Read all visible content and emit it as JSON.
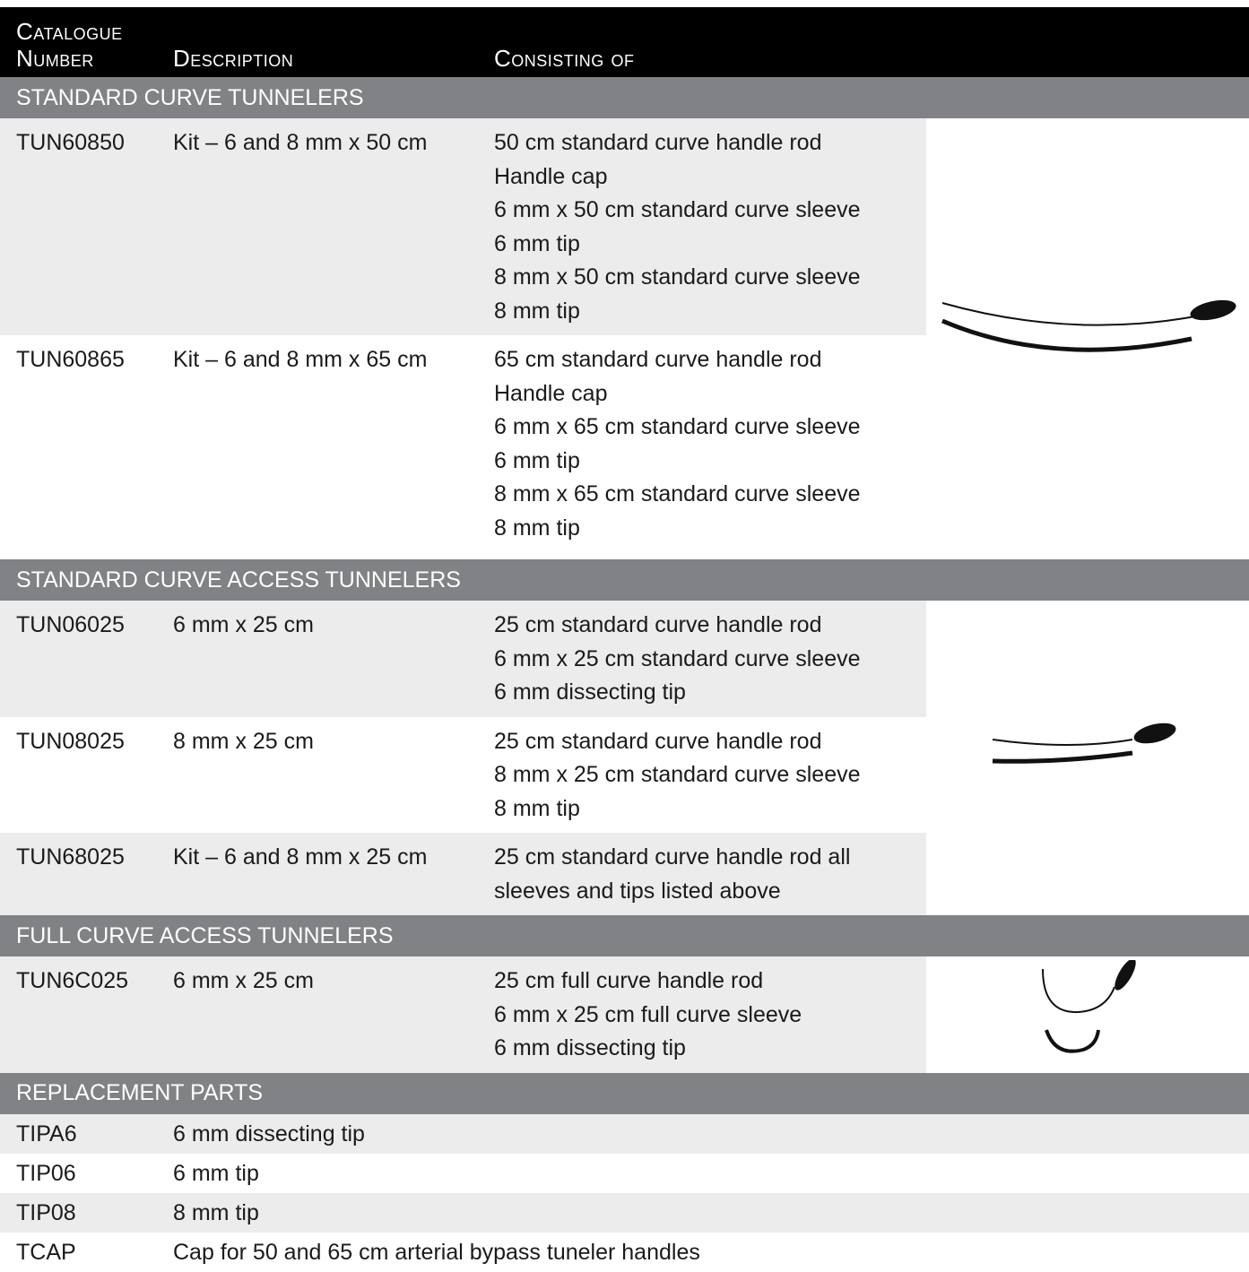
{
  "header": {
    "columns": [
      "Catalogue Number",
      "Description",
      "Consisting of"
    ]
  },
  "sections": [
    {
      "title": "STANDARD CURVE TUNNELERS",
      "rows": [
        {
          "number": "TUN60850",
          "description": "Kit – 6 and 8 mm x 50 cm",
          "items": [
            "50 cm standard curve handle rod",
            "Handle cap",
            "6 mm x 50 cm standard curve sleeve",
            "6 mm tip",
            "8 mm x 50 cm standard curve sleeve",
            "8 mm tip"
          ]
        },
        {
          "number": "TUN60865",
          "description": "Kit – 6 and 8 mm x 65 cm",
          "items": [
            "65 cm standard curve handle rod",
            "Handle cap",
            "6 mm x 65 cm standard curve sleeve",
            "6 mm tip",
            "8 mm x 65 cm standard curve sleeve",
            "8 mm tip"
          ]
        }
      ]
    },
    {
      "title": "STANDARD CURVE ACCESS TUNNELERS",
      "rows": [
        {
          "number": "TUN06025",
          "description": "6 mm x 25 cm",
          "items": [
            "25 cm standard curve handle rod",
            "6 mm x 25 cm standard curve sleeve",
            "6 mm dissecting tip"
          ]
        },
        {
          "number": "TUN08025",
          "description": "8 mm x 25 cm",
          "items": [
            "25 cm standard curve handle rod",
            "8 mm x 25 cm standard curve sleeve",
            "8 mm tip"
          ]
        },
        {
          "number": "TUN68025",
          "description": "Kit – 6 and 8 mm x 25 cm",
          "items": [
            "25 cm standard curve handle rod all sleeves and tips listed above"
          ]
        }
      ]
    },
    {
      "title": "FULL CURVE ACCESS TUNNELERS",
      "rows": [
        {
          "number": "TUN6C025",
          "description": "6 mm x 25 cm",
          "items": [
            "25 cm full curve handle rod",
            "6 mm x 25 cm full curve sleeve",
            "6 mm dissecting tip"
          ]
        }
      ]
    },
    {
      "title": "REPLACEMENT PARTS",
      "rows": [
        {
          "number": "TIPA6",
          "description": "6 mm dissecting tip"
        },
        {
          "number": "TIP06",
          "description": "6 mm tip"
        },
        {
          "number": "TIP08",
          "description": "8 mm tip"
        },
        {
          "number": "TCAP",
          "description": "Cap for 50 and 65 cm arterial bypass tuneler handles"
        }
      ]
    }
  ]
}
